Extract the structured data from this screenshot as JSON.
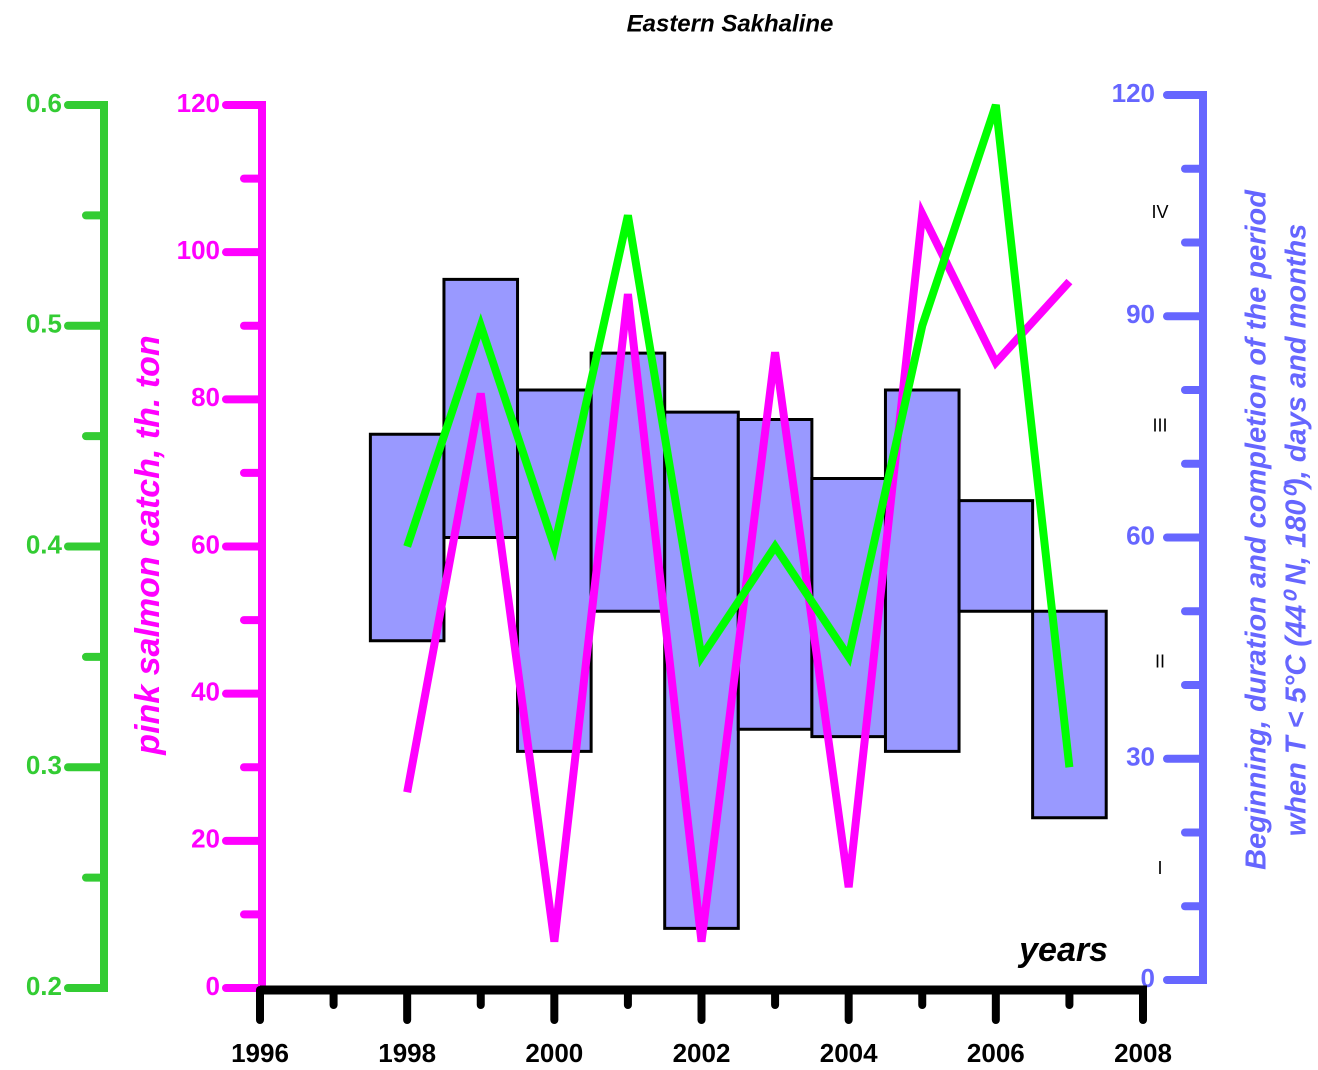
{
  "chart_data": {
    "type": "combo",
    "title": "Eastern Sakhaline",
    "ylabel": "pink salmon catch, th. ton",
    "y3label": [
      "Beginning, duration and completion of the period",
      "when T < 5°C (44⁰ N, 180⁰), days and months"
    ],
    "xlabel": "years",
    "x": [
      1998,
      1999,
      2000,
      2001,
      2002,
      2003,
      2004,
      2005,
      2006,
      2007
    ],
    "xlim": [
      1996,
      2008
    ],
    "xticks": [
      1996,
      1998,
      2000,
      2002,
      2004,
      2006,
      2008
    ],
    "ylim": [
      0,
      120
    ],
    "yticks": [
      0,
      20,
      40,
      60,
      80,
      100,
      120
    ],
    "y2lim": [
      0.2,
      0.6
    ],
    "y2ticks": [
      0.2,
      0.3,
      0.4,
      0.5,
      0.6
    ],
    "y3lim": [
      0,
      120
    ],
    "y3ticks": [
      0,
      30,
      60,
      90,
      120
    ],
    "minor_ticks": {
      "x": 2,
      "y": 2,
      "y2": 2,
      "y3": 3
    },
    "axis_colors": {
      "x": "#000000",
      "y": "#ff00ff",
      "y2": "#33cc33",
      "y3": "#6666ff"
    },
    "ranges": {
      "axis": "y3",
      "color": "#9999ff",
      "low": [
        46,
        60,
        31,
        50,
        7,
        34,
        33,
        31,
        50,
        22
      ],
      "high": [
        74,
        95,
        80,
        85,
        77,
        76,
        68,
        80,
        65,
        50
      ]
    },
    "series": [
      {
        "axis": "y",
        "color": "#ff00ff",
        "values": [
          26.6,
          80.8,
          6.3,
          94.3,
          6.3,
          86.4,
          13.7,
          105.2,
          85,
          96
        ]
      },
      {
        "axis": "y2",
        "color": "#00ff00",
        "values": [
          0.4,
          0.5,
          0.4,
          0.55,
          0.35,
          0.4,
          0.35,
          0.5,
          0.6,
          0.3
        ]
      }
    ],
    "annotations": [
      {
        "label": "I",
        "value": 15
      },
      {
        "label": "II",
        "value": 43
      },
      {
        "label": "III",
        "value": 75
      },
      {
        "label": "IV",
        "value": 104
      }
    ]
  }
}
